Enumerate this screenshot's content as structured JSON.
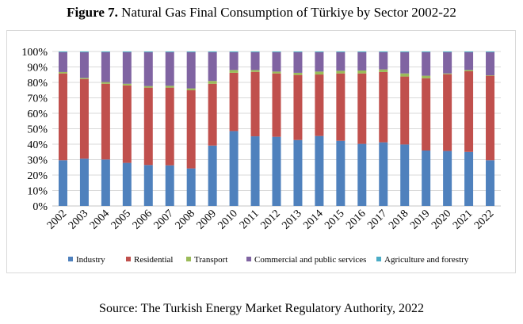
{
  "title_bold": "Figure 7.",
  "title_rest": " Natural Gas Final Consumption of Türkiye by Sector 2002-22",
  "source": "Source: The Turkish Energy Market Regulatory Authority, 2022",
  "chart_data": {
    "type": "bar",
    "stacked": true,
    "title": "Natural Gas Final Consumption of Türkiye by Sector 2002-22",
    "xlabel": "",
    "ylabel": "",
    "ylim": [
      0,
      100
    ],
    "yticks": [
      "0%",
      "10%",
      "20%",
      "30%",
      "40%",
      "50%",
      "60%",
      "70%",
      "80%",
      "90%",
      "100%"
    ],
    "grid": true,
    "legend_position": "bottom",
    "categories": [
      "2002",
      "2003",
      "2004",
      "2005",
      "2006",
      "2007",
      "2008",
      "2009",
      "2010",
      "2011",
      "2012",
      "2013",
      "2014",
      "2015",
      "2016",
      "2017",
      "2018",
      "2019",
      "2020",
      "2021",
      "2022"
    ],
    "series": [
      {
        "name": "Industry",
        "color": "#4f81bd",
        "values": [
          29.6,
          30.6,
          30.1,
          27.9,
          26.5,
          26.3,
          24.3,
          39.1,
          48.5,
          45.1,
          44.8,
          42.7,
          45.3,
          42.2,
          40.2,
          41.2,
          39.8,
          35.9,
          35.6,
          35.0,
          29.6
        ]
      },
      {
        "name": "Residential",
        "color": "#c0504d",
        "values": [
          56.2,
          51.6,
          49.0,
          50.2,
          50.1,
          50.3,
          50.6,
          40.0,
          37.7,
          41.7,
          41.0,
          42.1,
          39.8,
          43.6,
          45.6,
          45.5,
          44.0,
          46.8,
          49.7,
          52.2,
          54.7
        ]
      },
      {
        "name": "Transport",
        "color": "#9bbb59",
        "values": [
          0.9,
          0.7,
          1.1,
          1.0,
          1.0,
          1.2,
          1.2,
          1.8,
          1.8,
          1.2,
          1.2,
          1.4,
          1.9,
          1.7,
          1.9,
          1.7,
          2.0,
          1.6,
          0.5,
          0.8,
          0.3
        ]
      },
      {
        "name": "Commercial and public services",
        "color": "#8064a2",
        "values": [
          12.8,
          16.6,
          19.3,
          20.4,
          21.9,
          21.7,
          23.4,
          18.6,
          11.5,
          11.5,
          12.5,
          13.3,
          12.5,
          12.0,
          11.8,
          11.1,
          13.7,
          15.2,
          13.7,
          11.5,
          14.9
        ]
      },
      {
        "name": "Agriculture and forestry",
        "color": "#4bacc6",
        "values": [
          0.5,
          0.5,
          0.5,
          0.5,
          0.5,
          0.5,
          0.5,
          0.5,
          0.5,
          0.5,
          0.5,
          0.5,
          0.5,
          0.5,
          0.5,
          0.5,
          0.5,
          0.5,
          0.5,
          0.5,
          0.5
        ]
      }
    ]
  }
}
